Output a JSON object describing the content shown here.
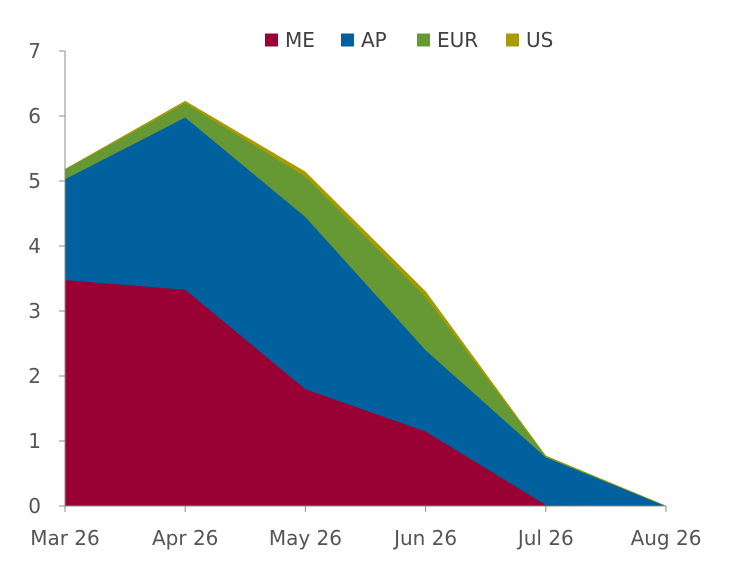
{
  "chart_data": {
    "type": "area",
    "stacked": true,
    "categories": [
      "Mar 26",
      "Apr 26",
      "May 26",
      "Jun 26",
      "Jul 26",
      "Aug 26"
    ],
    "series": [
      {
        "name": "ME",
        "color": "#990033",
        "values": [
          3.48,
          3.33,
          1.8,
          1.15,
          0.02,
          0.0
        ]
      },
      {
        "name": "AP",
        "color": "#00619e",
        "values": [
          1.55,
          2.65,
          2.65,
          1.25,
          0.73,
          0.0
        ]
      },
      {
        "name": "EUR",
        "color": "#669933",
        "values": [
          0.15,
          0.22,
          0.62,
          0.82,
          0.02,
          0.0
        ]
      },
      {
        "name": "US",
        "color": "#a89b00",
        "values": [
          0.0,
          0.03,
          0.07,
          0.08,
          0.0,
          0.0
        ]
      }
    ],
    "ylim": [
      0,
      7
    ],
    "yticks": [
      "0",
      "1",
      "2",
      "3",
      "4",
      "5",
      "6",
      "7"
    ],
    "grid": false,
    "legend_position": "top"
  }
}
